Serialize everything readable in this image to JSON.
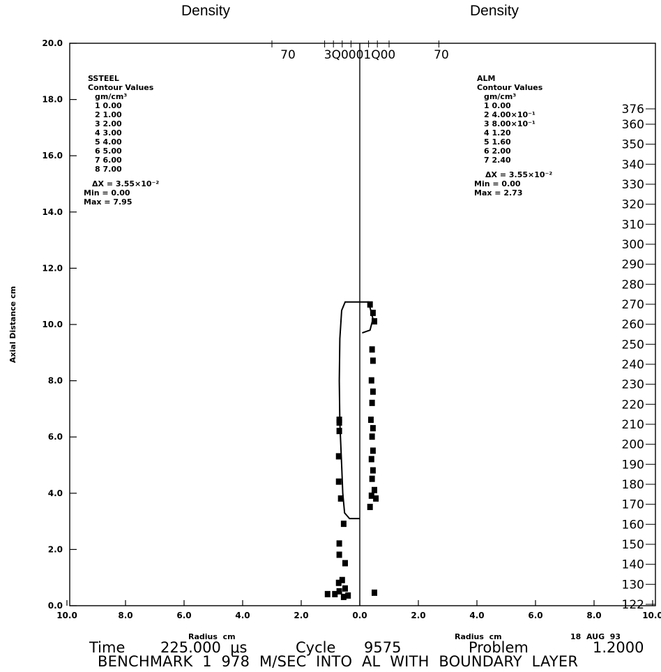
{
  "headers": {
    "left": "Density",
    "right": "Density"
  },
  "legend_left": {
    "material": "SSTEEL",
    "title": "Contour Values",
    "units": "gm/cm³",
    "entries": [
      "1  0.00",
      "2  1.00",
      "3  2.00",
      "4  3.00",
      "5  4.00",
      "6  5.00",
      "7  6.00",
      "8  7.00"
    ],
    "dx": "ΔX  =  3.55×10⁻²",
    "min": "Min  =  0.00",
    "max": "Max  =  7.95"
  },
  "legend_right": {
    "material": "ALM",
    "title": "Contour Values",
    "units": "gm/cm³",
    "entries": [
      "1  0.00",
      "2  4.00×10⁻¹",
      "3  8.00×10⁻¹",
      "4  1.20",
      "5  1.60",
      "6  2.00",
      "7  2.40"
    ],
    "dx": "ΔX  =  3.55×10⁻²",
    "min": "Min  =  0.00",
    "max": "Max  =  2.73"
  },
  "footer": {
    "radius_label_left": "Radius  cm",
    "radius_label_right": "Radius  cm",
    "date": "18  AUG  93",
    "time_label": "Time",
    "time_value": "225.000  μs",
    "cycle_label": "Cycle",
    "cycle_value": "9575",
    "problem_label": "Problem",
    "problem_value": "1.2000",
    "description": "BENCHMARK  1  978  M/SEC  INTO  AL  WITH  BOUNDARY  LAYER"
  },
  "chart_data": {
    "type": "contour",
    "ylabel": "Axial Distance cm",
    "xlabel": "Radius cm",
    "ylim": [
      0,
      20
    ],
    "xlim": [
      -10,
      10
    ],
    "y_ticks": [
      "0.0",
      "2.0",
      "4.0",
      "6.0",
      "8.0",
      "10.0",
      "12.0",
      "14.0",
      "16.0",
      "18.0",
      "20.0"
    ],
    "x_ticks": [
      "10.0",
      "8.0",
      "6.0",
      "4.0",
      "2.0",
      "0.0",
      "2.0",
      "4.0",
      "6.0",
      "8.0",
      "10.0"
    ],
    "top_labels": [
      "70",
      "3Q0001Q00",
      "70"
    ],
    "right_scale_ticks": [
      "122",
      "130",
      "140",
      "150",
      "160",
      "170",
      "180",
      "190",
      "200",
      "210",
      "220",
      "230",
      "240",
      "250",
      "260",
      "270",
      "280",
      "290",
      "300",
      "310",
      "320",
      "330",
      "340",
      "350",
      "360",
      "376"
    ],
    "left_contour": [
      [
        0,
        10.8
      ],
      [
        -0.5,
        10.8
      ],
      [
        -0.62,
        10.5
      ],
      [
        -0.68,
        9.5
      ],
      [
        -0.7,
        8.0
      ],
      [
        -0.68,
        6.5
      ],
      [
        -0.62,
        5.0
      ],
      [
        -0.58,
        4.0
      ],
      [
        -0.52,
        3.3
      ],
      [
        -0.35,
        3.1
      ],
      [
        0,
        3.1
      ]
    ],
    "left_scatter": [
      [
        -0.7,
        6.6
      ],
      [
        -0.7,
        6.5
      ],
      [
        -0.7,
        6.2
      ],
      [
        -0.72,
        5.3
      ],
      [
        -0.72,
        4.4
      ],
      [
        -0.65,
        3.8
      ],
      [
        -0.55,
        2.9
      ],
      [
        -0.7,
        2.2
      ],
      [
        -0.7,
        1.8
      ],
      [
        -0.5,
        1.5
      ],
      [
        -0.6,
        0.9
      ],
      [
        -0.72,
        0.8
      ],
      [
        -0.5,
        0.6
      ],
      [
        -0.7,
        0.5
      ],
      [
        -0.85,
        0.4
      ],
      [
        -1.1,
        0.4
      ],
      [
        -0.55,
        0.3
      ],
      [
        -0.4,
        0.35
      ]
    ],
    "right_contour": [
      [
        0,
        10.8
      ],
      [
        0.3,
        10.8
      ],
      [
        0.45,
        10.2
      ],
      [
        0.35,
        9.8
      ],
      [
        0.08,
        9.7
      ]
    ],
    "right_scatter": [
      [
        0.35,
        10.7
      ],
      [
        0.45,
        10.4
      ],
      [
        0.5,
        10.1
      ],
      [
        0.42,
        9.1
      ],
      [
        0.45,
        8.7
      ],
      [
        0.4,
        8.0
      ],
      [
        0.45,
        7.6
      ],
      [
        0.42,
        7.2
      ],
      [
        0.38,
        6.6
      ],
      [
        0.45,
        6.3
      ],
      [
        0.42,
        6.0
      ],
      [
        0.45,
        5.5
      ],
      [
        0.4,
        5.2
      ],
      [
        0.45,
        4.8
      ],
      [
        0.42,
        4.5
      ],
      [
        0.5,
        4.1
      ],
      [
        0.4,
        3.9
      ],
      [
        0.35,
        3.5
      ],
      [
        0.55,
        3.8
      ],
      [
        0.5,
        0.45
      ]
    ]
  }
}
